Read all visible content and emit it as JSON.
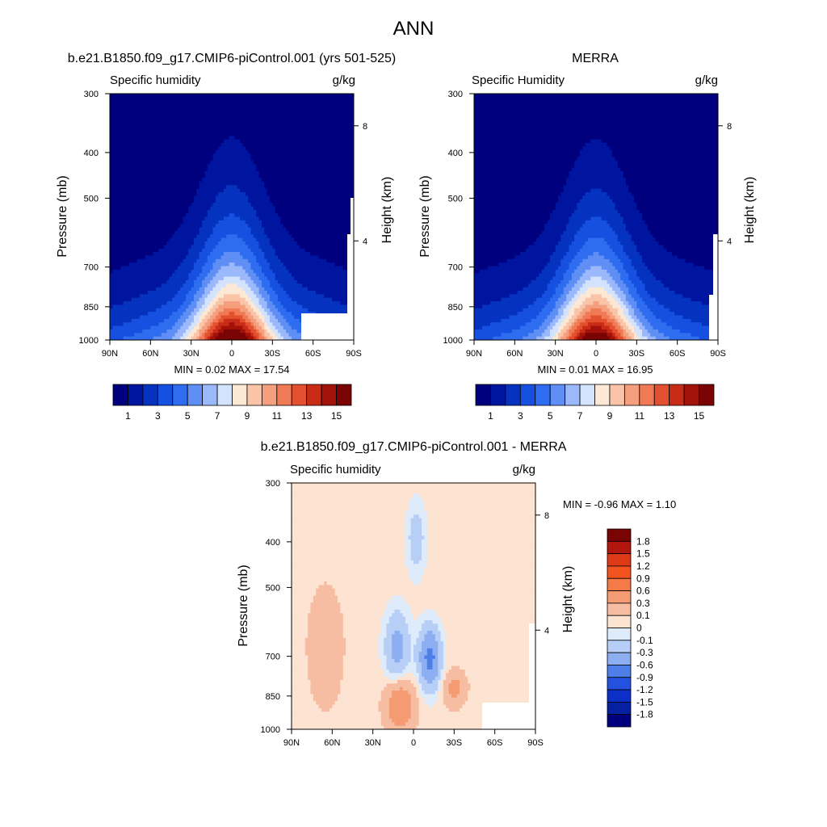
{
  "main_title": "ANN",
  "panels": [
    {
      "title": "b.e21.B1850.f09_g17.CMIP6-piControl.001 (yrs 501-525)",
      "left_label": "Specific humidity",
      "right_label": "g/kg",
      "stats": "MIN =   0.02  MAX =  17.54"
    },
    {
      "title": "MERRA",
      "left_label": "Specific Humidity",
      "right_label": "g/kg",
      "stats": "MIN =   0.01  MAX =  16.95"
    },
    {
      "title": "b.e21.B1850.f09_g17.CMIP6-piControl.001 - MERRA",
      "left_label": "Specific humidity",
      "right_label": "g/kg",
      "stats": "MIN =  -0.96  MAX =   1.10"
    }
  ],
  "chart_data": [
    {
      "type": "heatmap",
      "title": "b.e21.B1850.f09_g17.CMIP6-piControl.001 (yrs 501-525)",
      "xlabel": "",
      "ylabel": "Pressure (mb)",
      "y2label": "Height (km)",
      "x_ticks": [
        "90N",
        "60N",
        "30N",
        "0",
        "30S",
        "60S",
        "90S"
      ],
      "x_values": [
        90,
        60,
        30,
        0,
        -30,
        -60,
        -90
      ],
      "xlim": [
        90,
        -90
      ],
      "y_ticks": [
        300,
        400,
        500,
        700,
        850,
        1000
      ],
      "ylim": [
        1000,
        300
      ],
      "y_scale": "log",
      "y2_ticks": [
        8,
        4
      ],
      "units": "g/kg",
      "min": 0.02,
      "max": 17.54,
      "colorbar": {
        "orientation": "horizontal",
        "levels": [
          1,
          2,
          3,
          4,
          5,
          6,
          7,
          8,
          9,
          10,
          11,
          12,
          13,
          14,
          15
        ],
        "labels": [
          "1",
          "3",
          "5",
          "7",
          "9",
          "11",
          "13",
          "15"
        ]
      },
      "profile_top": "surface peak 17.54 at equator, decreasing poleward and upward"
    },
    {
      "type": "heatmap",
      "title": "MERRA",
      "xlabel": "",
      "ylabel": "Pressure (mb)",
      "y2label": "Height (km)",
      "x_ticks": [
        "90N",
        "60N",
        "30N",
        "0",
        "30S",
        "60S",
        "90S"
      ],
      "xlim": [
        90,
        -90
      ],
      "y_ticks": [
        300,
        400,
        500,
        700,
        850,
        1000
      ],
      "ylim": [
        1000,
        300
      ],
      "y_scale": "log",
      "y2_ticks": [
        8,
        4
      ],
      "units": "g/kg",
      "min": 0.01,
      "max": 16.95,
      "colorbar": {
        "orientation": "horizontal",
        "levels": [
          1,
          2,
          3,
          4,
          5,
          6,
          7,
          8,
          9,
          10,
          11,
          12,
          13,
          14,
          15
        ],
        "labels": [
          "1",
          "3",
          "5",
          "7",
          "9",
          "11",
          "13",
          "15"
        ]
      }
    },
    {
      "type": "heatmap",
      "title": "b.e21.B1850.f09_g17.CMIP6-piControl.001 - MERRA",
      "xlabel": "",
      "ylabel": "Pressure (mb)",
      "y2label": "Height (km)",
      "x_ticks": [
        "90N",
        "60N",
        "30N",
        "0",
        "30S",
        "60S",
        "90S"
      ],
      "xlim": [
        90,
        -90
      ],
      "y_ticks": [
        300,
        400,
        500,
        700,
        850,
        1000
      ],
      "ylim": [
        1000,
        300
      ],
      "y_scale": "log",
      "y2_ticks": [
        8,
        4
      ],
      "units": "g/kg",
      "min": -0.96,
      "max": 1.1,
      "colorbar": {
        "orientation": "vertical",
        "levels": [
          -1.8,
          -1.5,
          -1.2,
          -0.9,
          -0.6,
          -0.3,
          -0.1,
          0,
          0.1,
          0.3,
          0.6,
          0.9,
          1.2,
          1.5,
          1.8
        ],
        "labels": [
          "1.8",
          "1.5",
          "1.2",
          "0.9",
          "0.6",
          "0.3",
          "0.1",
          "0",
          "-0.1",
          "-0.3",
          "-0.6",
          "-0.9",
          "-1.2",
          "-1.5",
          "-1.8"
        ]
      }
    }
  ],
  "colors": {
    "abs_palette": [
      "#00007f",
      "#00159f",
      "#0533c0",
      "#1650e0",
      "#2e6cf0",
      "#5f8ff5",
      "#9ab8fa",
      "#d3e2fd",
      "#fde7d5",
      "#f9c4a8",
      "#f4a07e",
      "#f07a55",
      "#e3502f",
      "#c82c16",
      "#a2110a",
      "#7a0403"
    ],
    "diff_palette": [
      "#7a0403",
      "#b2160c",
      "#df3a18",
      "#f3531e",
      "#f47a48",
      "#f49b73",
      "#f7bda3",
      "#fde3d2",
      "#deebfb",
      "#b7cff6",
      "#8daef0",
      "#4e7fe8",
      "#2452e0",
      "#0b2fc7",
      "#0520a0",
      "#00007f"
    ]
  }
}
